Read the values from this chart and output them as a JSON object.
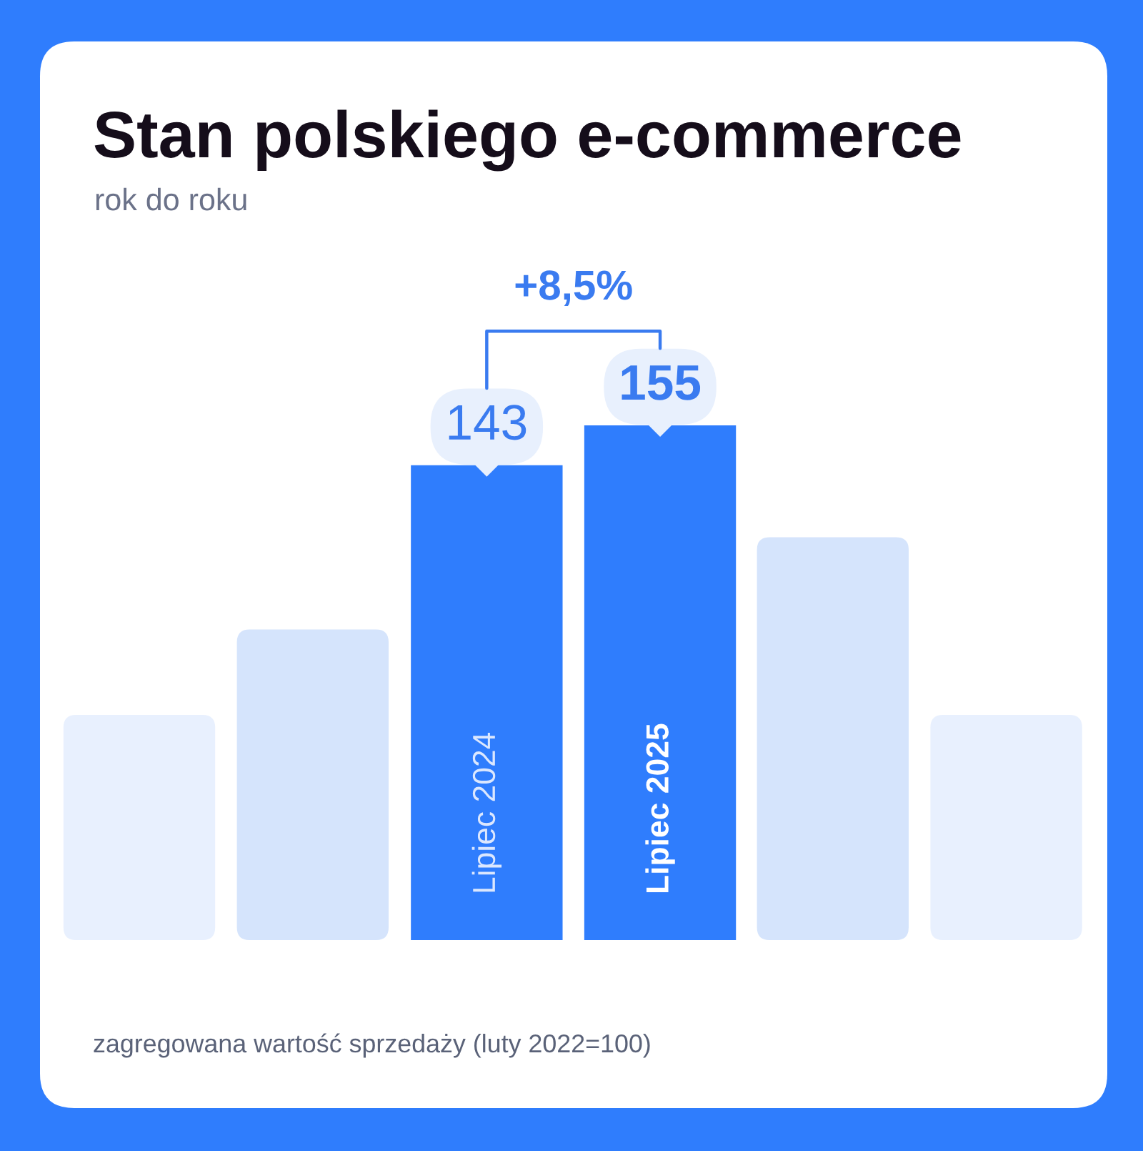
{
  "chart_data": {
    "type": "bar",
    "title": "Stan polskiego e-commerce",
    "subtitle": "rok do roku",
    "categories": [
      "Lipiec 2024",
      "Lipiec 2025"
    ],
    "values": [
      143,
      155
    ],
    "colors": [
      "#2f7dfd",
      "#2f7dfd"
    ],
    "value_labels": [
      "143",
      "155"
    ],
    "tick_labels": "x",
    "annotations": [
      "+8,5%",
      "zagregowana wartość sprzedaży (luty 2022=100)"
    ]
  }
}
